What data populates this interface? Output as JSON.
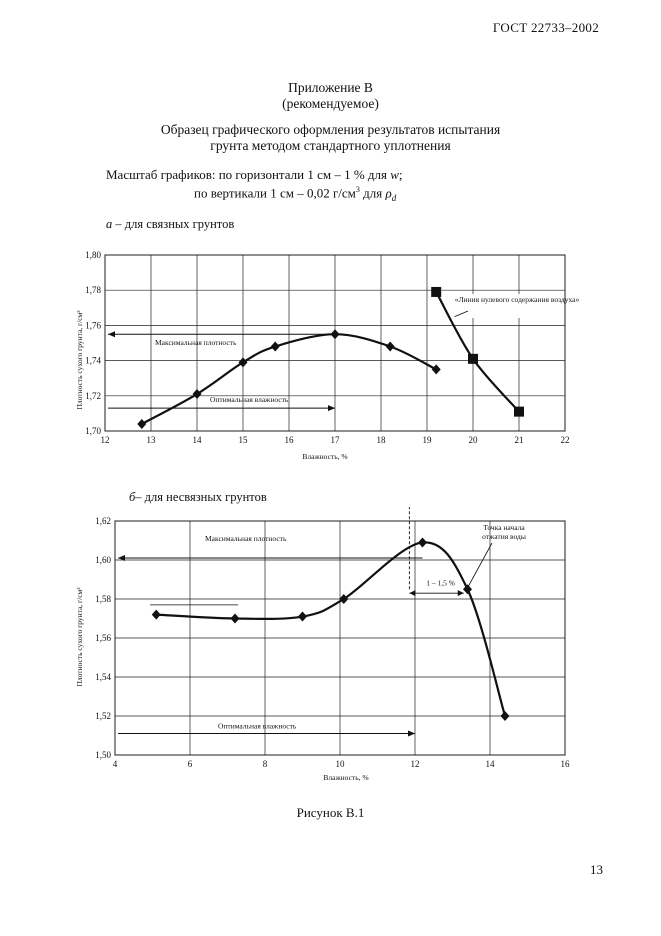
{
  "header": {
    "standard": "ГОСТ 22733–2002"
  },
  "appendix": {
    "title": "Приложение В",
    "subtitle": "(рекомендуемое)",
    "heading_line1": "Образец графического оформления результатов испытания",
    "heading_line2": "грунта методом стандартного уплотнения"
  },
  "scale": {
    "line1_prefix": "Масштаб графиков: по горизонтали 1 см – 1 % для ",
    "line1_var": "w",
    "line1_end": ";",
    "line2_prefix": "по вертикали 1 см  – 0,02 г/см",
    "line2_sup": "3",
    "line2_mid": " для ",
    "line2_var": "ρ",
    "line2_sub": "d"
  },
  "section_a": {
    "letter": "а",
    "label": " – для связных грунтов"
  },
  "section_b": {
    "letter": "б",
    "label": "– для несвязных грунтов"
  },
  "figure_caption": "Рисунок В.1",
  "page_number": "13",
  "chart_data": [
    {
      "type": "line",
      "xlabel": "Влажность, %",
      "ylabel": "Плотность сухого грунта, г/см³",
      "xlim": [
        12,
        22
      ],
      "ylim": [
        1.7,
        1.8
      ],
      "x_ticks": [
        "12",
        "13",
        "14",
        "15",
        "16",
        "17",
        "18",
        "19",
        "20",
        "21",
        "22"
      ],
      "y_ticks": [
        "1,70",
        "1,72",
        "1,74",
        "1,76",
        "1,78",
        "1,80"
      ],
      "grid": true,
      "series": [
        {
          "marker": "diamond",
          "x": [
            12.8,
            14.0,
            15.0,
            15.7,
            17.0,
            18.2,
            19.2
          ],
          "y": [
            1.704,
            1.721,
            1.739,
            1.748,
            1.755,
            1.748,
            1.735
          ]
        },
        {
          "marker": "square",
          "x": [
            19.2,
            20.0,
            21.0
          ],
          "y": [
            1.779,
            1.741,
            1.711
          ]
        }
      ],
      "annotations": {
        "max_density": "Максимальная плотность",
        "opt_moisture": "Оптимальная влажность",
        "air_free_line": "«Линия нулевого содержания воздуха»",
        "max_density_value": 1.755,
        "opt_moisture_value": 17.0
      }
    },
    {
      "type": "line",
      "xlabel": "Влажность, %",
      "ylabel": "Плотность сухого грунта, г/см³",
      "xlim": [
        4,
        16
      ],
      "ylim": [
        1.5,
        1.62
      ],
      "x_ticks": [
        "4",
        "6",
        "8",
        "10",
        "12",
        "14",
        "16"
      ],
      "y_ticks": [
        "1,50",
        "1,52",
        "1,54",
        "1,56",
        "1,58",
        "1,60",
        "1,62"
      ],
      "grid": true,
      "series": [
        {
          "marker": "diamond",
          "x": [
            5.1,
            7.2,
            9.0,
            10.1,
            12.2,
            13.4,
            14.4
          ],
          "y": [
            1.572,
            1.57,
            1.571,
            1.58,
            1.609,
            1.585,
            1.52
          ]
        }
      ],
      "annotations": {
        "max_density": "Максимальная плотность",
        "opt_moisture": "Оптимальная влажность",
        "water_point": [
          "Точка начала",
          "отжатия воды"
        ],
        "range_label": "1 – 1,5 %",
        "max_density_value": 1.609,
        "opt_moisture_value": 12.0
      }
    }
  ]
}
